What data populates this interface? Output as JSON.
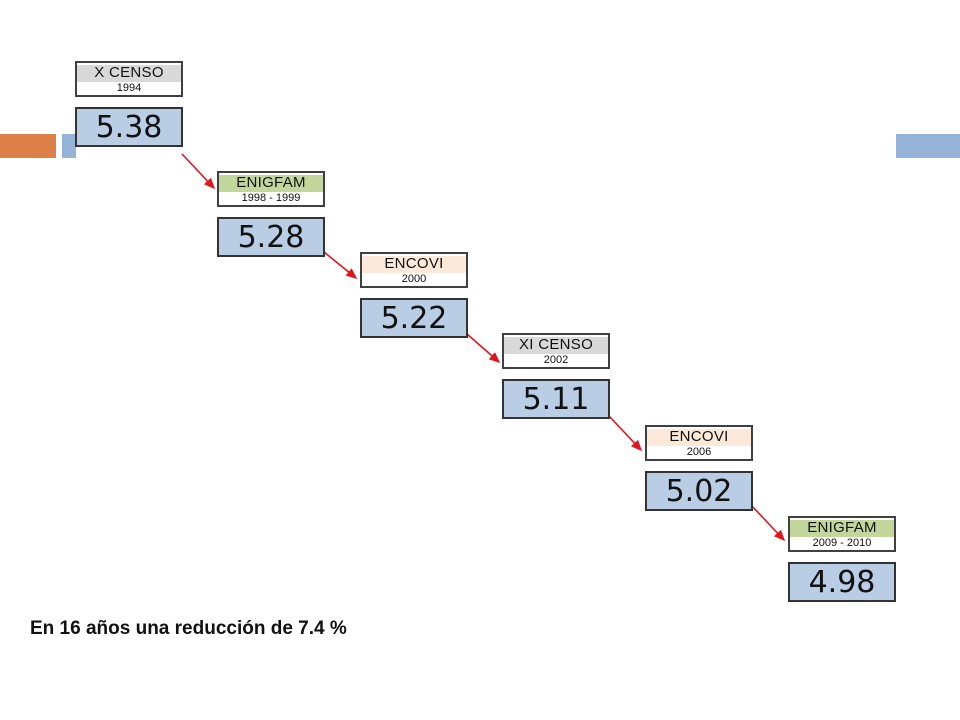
{
  "steps": [
    {
      "name": "X CENSO",
      "year": "1994",
      "value": "5.38",
      "header_color": "#d9d9d9"
    },
    {
      "name": "ENIGFAM",
      "year": "1998 - 1999",
      "value": "5.28",
      "header_color": "#c3d69b"
    },
    {
      "name": "ENCOVI",
      "year": "2000",
      "value": "5.22",
      "header_color": "#fde9d9"
    },
    {
      "name": "XI CENSO",
      "year": "2002",
      "value": "5.11",
      "header_color": "#d9d9d9"
    },
    {
      "name": "ENCOVI",
      "year": "2006",
      "value": "5.02",
      "header_color": "#fde9d9"
    },
    {
      "name": "ENIGFAM",
      "year": "2009 - 2010",
      "value": "4.98",
      "header_color": "#c3d69b"
    }
  ],
  "caption": "En 16 años una reducción de 7.4 %",
  "colors": {
    "arrow": "#e0161d",
    "value_fill": "#b9cde5"
  }
}
